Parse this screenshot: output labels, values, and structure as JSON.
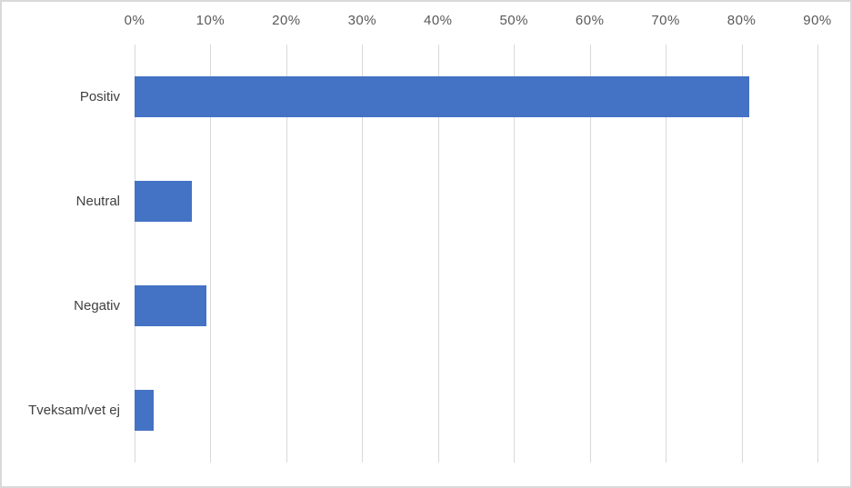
{
  "chart_data": {
    "type": "bar",
    "orientation": "horizontal",
    "title": "",
    "categories": [
      "Positiv",
      "Neutral",
      "Negativ",
      "Tveksam/vet ej"
    ],
    "values": [
      81,
      7.5,
      9.5,
      2.5
    ],
    "unit": "%",
    "xlim": [
      0,
      90
    ],
    "x_tick_values": [
      0,
      10,
      20,
      30,
      40,
      50,
      60,
      70,
      80,
      90
    ],
    "x_tick_labels": [
      "0%",
      "10%",
      "20%",
      "30%",
      "40%",
      "50%",
      "60%",
      "70%",
      "80%",
      "90%"
    ],
    "value_axis_position": "top",
    "category_axis_position": "left",
    "grid": true,
    "legend": "none",
    "colors": {
      "bar": "#4472C4",
      "gridline": "#D9D9D9",
      "tick_label": "#595959",
      "category_label": "#404040",
      "frame_border": "#D9D9D9",
      "background": "#FFFFFF"
    }
  }
}
